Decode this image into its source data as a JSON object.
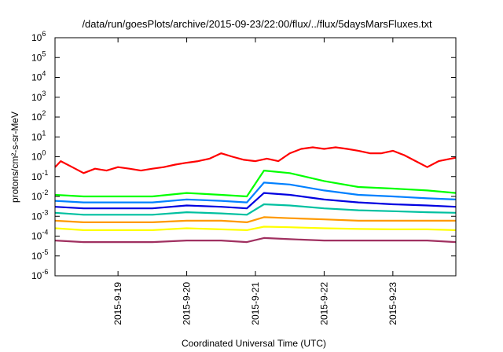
{
  "chart_data": {
    "type": "line",
    "title": "/data/run/goesPlots/archive/2015-09-23/22:00/flux/../flux/5daysMarsFluxes.txt",
    "ylabel": "protons/cm²-s-sr-MeV",
    "xlabel": "Coordinated Universal Time (UTC)",
    "yscale": "log",
    "ylim": [
      1e-06,
      1000000.0
    ],
    "xlim": [
      "2015-09-18T02:00",
      "2015-09-23T22:00"
    ],
    "grid": false,
    "legend": "none",
    "y_ticks": [
      {
        "value": 1e-06,
        "base": "10",
        "exp": "-6"
      },
      {
        "value": 1e-05,
        "base": "10",
        "exp": "-5"
      },
      {
        "value": 0.0001,
        "base": "10",
        "exp": "-4"
      },
      {
        "value": 0.001,
        "base": "10",
        "exp": "-3"
      },
      {
        "value": 0.01,
        "base": "10",
        "exp": "-2"
      },
      {
        "value": 0.1,
        "base": "10",
        "exp": "-1"
      },
      {
        "value": 1.0,
        "base": "10",
        "exp": "0"
      },
      {
        "value": 10.0,
        "base": "10",
        "exp": "1"
      },
      {
        "value": 100.0,
        "base": "10",
        "exp": "2"
      },
      {
        "value": 1000.0,
        "base": "10",
        "exp": "3"
      },
      {
        "value": 10000.0,
        "base": "10",
        "exp": "4"
      },
      {
        "value": 100000.0,
        "base": "10",
        "exp": "5"
      },
      {
        "value": 1000000.0,
        "base": "10",
        "exp": "6"
      }
    ],
    "x_ticks": [
      {
        "value": "2015-09-19T00:00",
        "label": "2015-9-19"
      },
      {
        "value": "2015-09-20T00:00",
        "label": "2015-9-20"
      },
      {
        "value": "2015-09-21T00:00",
        "label": "2015-9-21"
      },
      {
        "value": "2015-09-22T00:00",
        "label": "2015-9-22"
      },
      {
        "value": "2015-09-23T00:00",
        "label": "2015-9-23"
      }
    ],
    "series": [
      {
        "color": "#ff0000",
        "x": [
          "2015-09-18T02:00",
          "2015-09-18T04:00",
          "2015-09-18T08:00",
          "2015-09-18T12:00",
          "2015-09-18T16:00",
          "2015-09-18T20:00",
          "2015-09-19T00:00",
          "2015-09-19T04:00",
          "2015-09-19T08:00",
          "2015-09-19T12:00",
          "2015-09-19T16:00",
          "2015-09-19T20:00",
          "2015-09-20T00:00",
          "2015-09-20T04:00",
          "2015-09-20T08:00",
          "2015-09-20T12:00",
          "2015-09-20T16:00",
          "2015-09-20T20:00",
          "2015-09-21T00:00",
          "2015-09-21T04:00",
          "2015-09-21T08:00",
          "2015-09-21T12:00",
          "2015-09-21T16:00",
          "2015-09-21T20:00",
          "2015-09-22T00:00",
          "2015-09-22T04:00",
          "2015-09-22T08:00",
          "2015-09-22T12:00",
          "2015-09-22T16:00",
          "2015-09-22T20:00",
          "2015-09-23T00:00",
          "2015-09-23T04:00",
          "2015-09-23T08:00",
          "2015-09-23T12:00",
          "2015-09-23T16:00",
          "2015-09-23T22:00"
        ],
        "values": [
          0.3,
          0.6,
          0.3,
          0.15,
          0.25,
          0.2,
          0.3,
          0.25,
          0.2,
          0.25,
          0.3,
          0.4,
          0.5,
          0.6,
          0.8,
          1.5,
          1.0,
          0.7,
          0.6,
          0.8,
          0.6,
          1.5,
          2.5,
          3.0,
          2.5,
          3.0,
          2.5,
          2.0,
          1.5,
          1.5,
          2.0,
          1.2,
          0.6,
          0.3,
          0.6,
          0.9
        ]
      },
      {
        "color": "#00ff00",
        "x": [
          "2015-09-18T02:00",
          "2015-09-18T12:00",
          "2015-09-19T00:00",
          "2015-09-19T12:00",
          "2015-09-20T00:00",
          "2015-09-20T12:00",
          "2015-09-20T21:00",
          "2015-09-21T03:00",
          "2015-09-21T12:00",
          "2015-09-22T00:00",
          "2015-09-22T12:00",
          "2015-09-23T00:00",
          "2015-09-23T12:00",
          "2015-09-23T22:00"
        ],
        "values": [
          0.012,
          0.01,
          0.01,
          0.01,
          0.015,
          0.012,
          0.01,
          0.2,
          0.15,
          0.06,
          0.03,
          0.025,
          0.02,
          0.015
        ]
      },
      {
        "color": "#0080ff",
        "x": [
          "2015-09-18T02:00",
          "2015-09-18T12:00",
          "2015-09-19T00:00",
          "2015-09-19T12:00",
          "2015-09-20T00:00",
          "2015-09-20T12:00",
          "2015-09-20T21:00",
          "2015-09-21T03:00",
          "2015-09-21T12:00",
          "2015-09-22T00:00",
          "2015-09-22T12:00",
          "2015-09-23T00:00",
          "2015-09-23T12:00",
          "2015-09-23T22:00"
        ],
        "values": [
          0.006,
          0.005,
          0.005,
          0.005,
          0.007,
          0.006,
          0.005,
          0.05,
          0.04,
          0.02,
          0.012,
          0.01,
          0.008,
          0.007
        ]
      },
      {
        "color": "#0000e0",
        "x": [
          "2015-09-18T02:00",
          "2015-09-18T12:00",
          "2015-09-19T00:00",
          "2015-09-19T12:00",
          "2015-09-20T00:00",
          "2015-09-20T12:00",
          "2015-09-20T21:00",
          "2015-09-21T03:00",
          "2015-09-21T12:00",
          "2015-09-22T00:00",
          "2015-09-22T12:00",
          "2015-09-23T00:00",
          "2015-09-23T12:00",
          "2015-09-23T22:00"
        ],
        "values": [
          0.003,
          0.0025,
          0.0025,
          0.0025,
          0.0035,
          0.003,
          0.0025,
          0.015,
          0.012,
          0.007,
          0.005,
          0.004,
          0.0035,
          0.003
        ]
      },
      {
        "color": "#00c0a0",
        "x": [
          "2015-09-18T02:00",
          "2015-09-18T12:00",
          "2015-09-19T00:00",
          "2015-09-19T12:00",
          "2015-09-20T00:00",
          "2015-09-20T12:00",
          "2015-09-20T21:00",
          "2015-09-21T03:00",
          "2015-09-21T12:00",
          "2015-09-22T00:00",
          "2015-09-22T12:00",
          "2015-09-23T00:00",
          "2015-09-23T12:00",
          "2015-09-23T22:00"
        ],
        "values": [
          0.0015,
          0.0012,
          0.0012,
          0.0012,
          0.0016,
          0.0014,
          0.0012,
          0.004,
          0.0035,
          0.0025,
          0.002,
          0.0018,
          0.0016,
          0.0015
        ]
      },
      {
        "color": "#ff9900",
        "x": [
          "2015-09-18T02:00",
          "2015-09-18T12:00",
          "2015-09-19T00:00",
          "2015-09-19T12:00",
          "2015-09-20T00:00",
          "2015-09-20T12:00",
          "2015-09-20T21:00",
          "2015-09-21T03:00",
          "2015-09-21T12:00",
          "2015-09-22T00:00",
          "2015-09-22T12:00",
          "2015-09-23T00:00",
          "2015-09-23T12:00",
          "2015-09-23T22:00"
        ],
        "values": [
          0.0006,
          0.0005,
          0.0005,
          0.0005,
          0.0006,
          0.0006,
          0.0005,
          0.0009,
          0.0008,
          0.0007,
          0.0006,
          0.0006,
          0.0006,
          0.0006
        ]
      },
      {
        "color": "#ffff00",
        "x": [
          "2015-09-18T02:00",
          "2015-09-18T12:00",
          "2015-09-19T00:00",
          "2015-09-19T12:00",
          "2015-09-20T00:00",
          "2015-09-20T12:00",
          "2015-09-20T21:00",
          "2015-09-21T03:00",
          "2015-09-21T12:00",
          "2015-09-22T00:00",
          "2015-09-22T12:00",
          "2015-09-23T00:00",
          "2015-09-23T12:00",
          "2015-09-23T22:00"
        ],
        "values": [
          0.00025,
          0.0002,
          0.0002,
          0.0002,
          0.00025,
          0.00022,
          0.0002,
          0.0003,
          0.00028,
          0.00025,
          0.00023,
          0.00022,
          0.00022,
          0.0002
        ]
      },
      {
        "color": "#a03060",
        "x": [
          "2015-09-18T02:00",
          "2015-09-18T12:00",
          "2015-09-19T00:00",
          "2015-09-19T12:00",
          "2015-09-20T00:00",
          "2015-09-20T12:00",
          "2015-09-20T21:00",
          "2015-09-21T03:00",
          "2015-09-21T12:00",
          "2015-09-22T00:00",
          "2015-09-22T12:00",
          "2015-09-23T00:00",
          "2015-09-23T12:00",
          "2015-09-23T22:00"
        ],
        "values": [
          6e-05,
          5e-05,
          5e-05,
          5e-05,
          6e-05,
          6e-05,
          5e-05,
          8e-05,
          7e-05,
          6e-05,
          6e-05,
          6e-05,
          6e-05,
          5e-05
        ]
      }
    ]
  }
}
